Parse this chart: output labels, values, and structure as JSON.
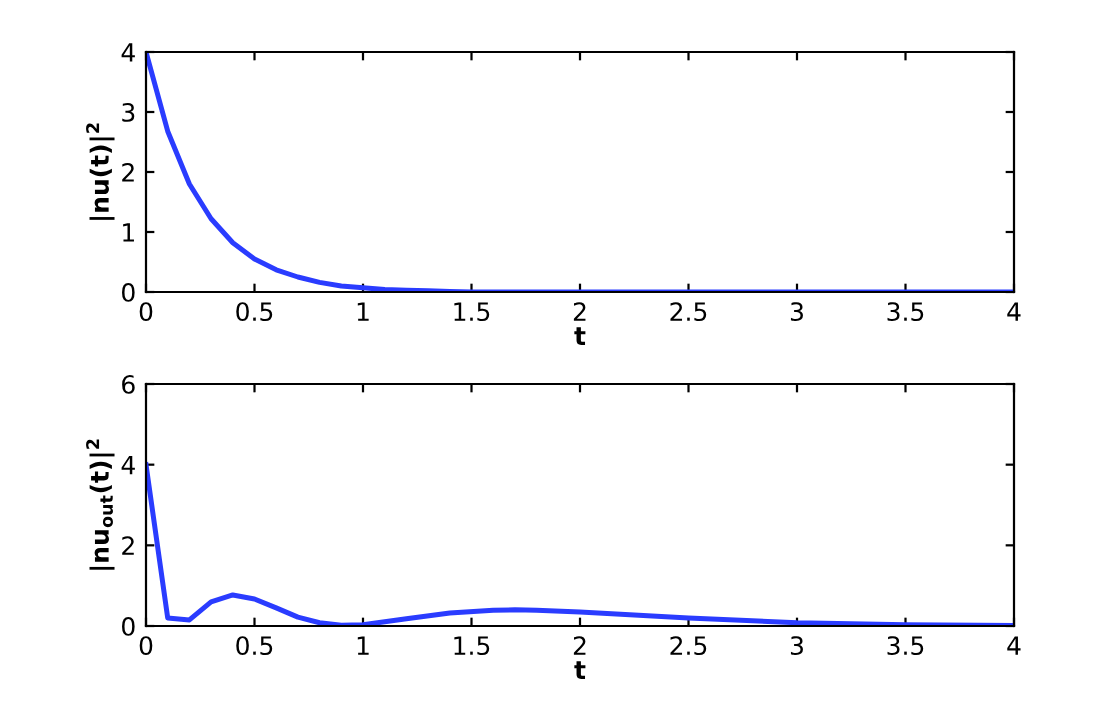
{
  "chart_data": [
    {
      "type": "line",
      "xlabel": "t",
      "ylabel": "|nu(t)|$^{2}$",
      "xlim": [
        0,
        4
      ],
      "ylim": [
        0,
        4
      ],
      "xticks": [
        0,
        0.5,
        1,
        1.5,
        2,
        2.5,
        3,
        3.5,
        4
      ],
      "yticks": [
        0,
        1,
        2,
        3,
        4
      ],
      "grid": false,
      "series": [
        {
          "color": "#2a3cff",
          "x": [
            0,
            0.1,
            0.2,
            0.3,
            0.4,
            0.5,
            0.6,
            0.7,
            0.8,
            0.9,
            1.0,
            1.1,
            1.2,
            1.3,
            1.4,
            1.5,
            4
          ],
          "values": [
            4,
            2.68,
            1.8,
            1.22,
            0.82,
            0.55,
            0.37,
            0.25,
            0.16,
            0.1,
            0.07,
            0.04,
            0.03,
            0.02,
            0.01,
            0,
            0
          ]
        }
      ]
    },
    {
      "type": "line",
      "xlabel": "t",
      "ylabel": "|nu$_{out}$(t)|$^{2}$",
      "xlim": [
        0,
        4
      ],
      "ylim": [
        0,
        6
      ],
      "xticks": [
        0,
        0.5,
        1,
        1.5,
        2,
        2.5,
        3,
        3.5,
        4
      ],
      "yticks": [
        0,
        2,
        4,
        6
      ],
      "grid": false,
      "series": [
        {
          "color": "#2a3cff",
          "x": [
            0,
            0.1,
            0.2,
            0.3,
            0.4,
            0.5,
            0.6,
            0.7,
            0.8,
            0.9,
            1.0,
            1.2,
            1.4,
            1.6,
            1.7,
            1.8,
            2.0,
            2.5,
            3.0,
            3.5,
            4
          ],
          "values": [
            4,
            0.2,
            0.15,
            0.6,
            0.77,
            0.67,
            0.45,
            0.22,
            0.08,
            0.02,
            0.03,
            0.18,
            0.32,
            0.39,
            0.4,
            0.39,
            0.35,
            0.2,
            0.08,
            0.03,
            0.01
          ]
        }
      ]
    }
  ]
}
